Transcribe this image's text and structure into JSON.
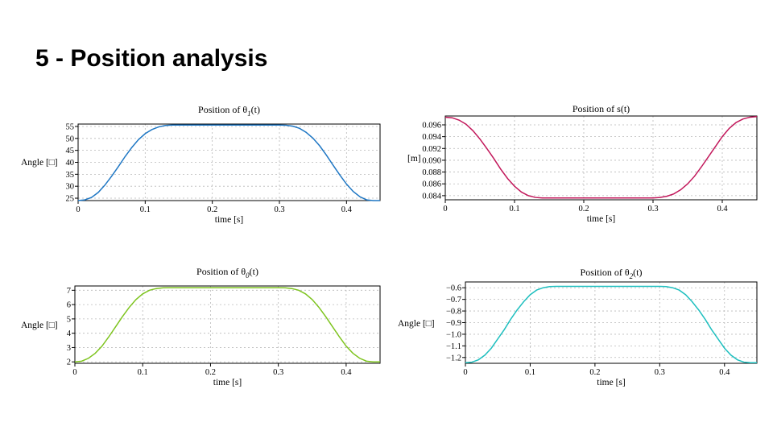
{
  "slide": {
    "title": "5 - Position analysis"
  },
  "chart_data": [
    {
      "type": "line",
      "title_prefix": "Position of θ",
      "title_sub": "1",
      "title_suffix": "(t)",
      "xlabel": "time [s]",
      "ylabel": "Angle [□]",
      "xlim": [
        0,
        0.45
      ],
      "ylim": [
        24,
        56
      ],
      "x_ticks": [
        0,
        0.1,
        0.2,
        0.3,
        0.4
      ],
      "y_ticks": [
        25,
        30,
        35,
        40,
        45,
        50,
        55
      ],
      "grid": true,
      "color": "#1f77c4",
      "x": [
        0,
        0.01,
        0.02,
        0.03,
        0.04,
        0.05,
        0.06,
        0.07,
        0.08,
        0.09,
        0.1,
        0.11,
        0.12,
        0.13,
        0.14,
        0.15,
        0.2,
        0.25,
        0.3,
        0.31,
        0.32,
        0.33,
        0.34,
        0.35,
        0.36,
        0.37,
        0.38,
        0.39,
        0.4,
        0.41,
        0.42,
        0.43,
        0.44,
        0.45
      ],
      "y": [
        24.0,
        24.3,
        25.3,
        27.4,
        30.5,
        34.2,
        38.2,
        42.4,
        46.2,
        49.5,
        52.0,
        53.7,
        54.8,
        55.4,
        55.6,
        55.6,
        55.6,
        55.6,
        55.6,
        55.5,
        55.1,
        54.2,
        52.5,
        50.1,
        46.9,
        43.0,
        38.8,
        34.7,
        30.9,
        27.8,
        25.6,
        24.3,
        24.0,
        24.0
      ]
    },
    {
      "type": "line",
      "title_prefix": "Position of s",
      "title_sub": "",
      "title_suffix": "(t)",
      "xlabel": "time [s]",
      "ylabel": "[m]",
      "xlim": [
        0,
        0.45
      ],
      "ylim": [
        0.0833,
        0.0975
      ],
      "x_ticks": [
        0,
        0.1,
        0.2,
        0.3,
        0.4
      ],
      "y_ticks": [
        0.084,
        0.086,
        0.088,
        0.09,
        0.092,
        0.094,
        0.096
      ],
      "y_tick_labels": [
        "0.084",
        "0.086",
        "0.088",
        "0.090",
        "0.092",
        "0.094",
        "0.096"
      ],
      "grid": true,
      "color": "#c2185b",
      "x": [
        0,
        0.01,
        0.02,
        0.03,
        0.04,
        0.05,
        0.06,
        0.07,
        0.08,
        0.09,
        0.1,
        0.11,
        0.12,
        0.13,
        0.14,
        0.15,
        0.2,
        0.25,
        0.3,
        0.31,
        0.32,
        0.33,
        0.34,
        0.35,
        0.36,
        0.37,
        0.38,
        0.39,
        0.4,
        0.41,
        0.42,
        0.43,
        0.44,
        0.45
      ],
      "y": [
        0.0973,
        0.0972,
        0.0968,
        0.0961,
        0.095,
        0.0936,
        0.092,
        0.0903,
        0.0885,
        0.0869,
        0.0856,
        0.0846,
        0.084,
        0.0837,
        0.0836,
        0.0836,
        0.0836,
        0.0836,
        0.0836,
        0.0837,
        0.0839,
        0.0843,
        0.085,
        0.086,
        0.0873,
        0.0889,
        0.0906,
        0.0923,
        0.094,
        0.0954,
        0.0964,
        0.097,
        0.0973,
        0.0974
      ]
    },
    {
      "type": "line",
      "title_prefix": "Position of θ",
      "title_sub": "0",
      "title_suffix": "(t)",
      "xlabel": "time [s]",
      "ylabel": "Angle [□]",
      "xlim": [
        0,
        0.45
      ],
      "ylim": [
        1.9,
        7.3
      ],
      "x_ticks": [
        0,
        0.1,
        0.2,
        0.3,
        0.4
      ],
      "y_ticks": [
        2,
        3,
        4,
        5,
        6,
        7
      ],
      "grid": true,
      "color": "#7ec41f",
      "x": [
        0,
        0.01,
        0.02,
        0.03,
        0.04,
        0.05,
        0.06,
        0.07,
        0.08,
        0.09,
        0.1,
        0.11,
        0.12,
        0.13,
        0.14,
        0.15,
        0.2,
        0.25,
        0.3,
        0.31,
        0.32,
        0.33,
        0.34,
        0.35,
        0.36,
        0.37,
        0.38,
        0.39,
        0.4,
        0.41,
        0.42,
        0.43,
        0.44,
        0.45
      ],
      "y": [
        2.0,
        2.05,
        2.25,
        2.6,
        3.1,
        3.75,
        4.45,
        5.15,
        5.8,
        6.35,
        6.75,
        7.0,
        7.12,
        7.17,
        7.18,
        7.18,
        7.18,
        7.18,
        7.18,
        7.17,
        7.12,
        7.0,
        6.75,
        6.35,
        5.8,
        5.15,
        4.45,
        3.75,
        3.1,
        2.6,
        2.25,
        2.05,
        2.0,
        2.0
      ]
    },
    {
      "type": "line",
      "title_prefix": "Position of θ",
      "title_sub": "2",
      "title_suffix": "(t)",
      "xlabel": "time [s]",
      "ylabel": "Angle [□]",
      "xlim": [
        0,
        0.45
      ],
      "ylim": [
        -1.25,
        -0.55
      ],
      "x_ticks": [
        0,
        0.1,
        0.2,
        0.3,
        0.4
      ],
      "y_ticks": [
        -1.2,
        -1.1,
        -1.0,
        -0.9,
        -0.8,
        -0.7,
        -0.6
      ],
      "y_tick_labels": [
        "−1.2",
        "−1.1",
        "−1.0",
        "−0.9",
        "−0.8",
        "−0.7",
        "−0.6"
      ],
      "grid": true,
      "color": "#1fbfbf",
      "x": [
        0,
        0.01,
        0.02,
        0.03,
        0.04,
        0.05,
        0.06,
        0.07,
        0.08,
        0.09,
        0.1,
        0.11,
        0.12,
        0.13,
        0.14,
        0.15,
        0.2,
        0.25,
        0.3,
        0.31,
        0.32,
        0.33,
        0.34,
        0.35,
        0.36,
        0.37,
        0.38,
        0.39,
        0.4,
        0.41,
        0.42,
        0.43,
        0.44,
        0.45
      ],
      "y": [
        -1.245,
        -1.24,
        -1.22,
        -1.18,
        -1.12,
        -1.04,
        -0.96,
        -0.87,
        -0.79,
        -0.72,
        -0.66,
        -0.62,
        -0.6,
        -0.59,
        -0.588,
        -0.588,
        -0.588,
        -0.588,
        -0.588,
        -0.59,
        -0.6,
        -0.62,
        -0.66,
        -0.72,
        -0.79,
        -0.87,
        -0.96,
        -1.04,
        -1.12,
        -1.18,
        -1.22,
        -1.24,
        -1.245,
        -1.245
      ]
    }
  ]
}
